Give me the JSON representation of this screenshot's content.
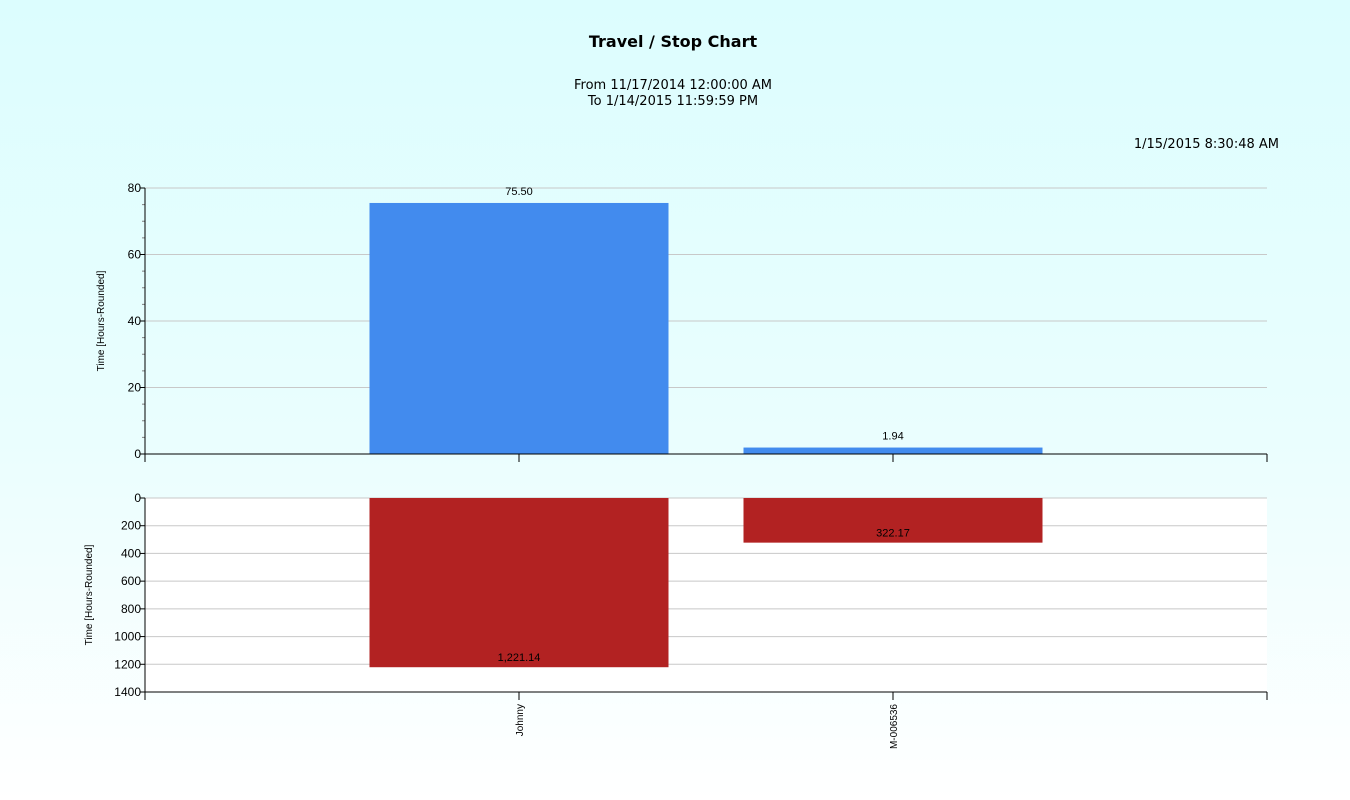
{
  "report": {
    "title": "Travel / Stop Chart",
    "from": "From 11/17/2014 12:00:00 AM",
    "to": "To 1/14/2015 11:59:59 PM",
    "generated": "1/15/2015 8:30:48 AM"
  },
  "colors": {
    "travel": "#428bee",
    "stop": "#b22222",
    "grid": "#c8c8c8",
    "axis": "#000000"
  },
  "chart_data": [
    {
      "type": "bar",
      "categories": [
        "Johnny",
        "M-006536"
      ],
      "values": [
        75.5,
        1.94
      ],
      "data_labels": [
        "75.50",
        "1.94"
      ],
      "ylabel": "Time [Hours-Rounded]",
      "ylim": [
        0,
        80
      ],
      "yticks": [
        0,
        20,
        40,
        60,
        80
      ],
      "grid": true,
      "orientation": "up"
    },
    {
      "type": "bar",
      "categories": [
        "Johnny",
        "M-006536"
      ],
      "values": [
        1221.14,
        322.17
      ],
      "data_labels": [
        "1,221.14",
        "322.17"
      ],
      "ylabel": "Time [Hours-Rounded]",
      "ylim": [
        0,
        1400
      ],
      "yticks": [
        0,
        200,
        400,
        600,
        800,
        1000,
        1200,
        1400
      ],
      "grid": true,
      "orientation": "down"
    }
  ]
}
